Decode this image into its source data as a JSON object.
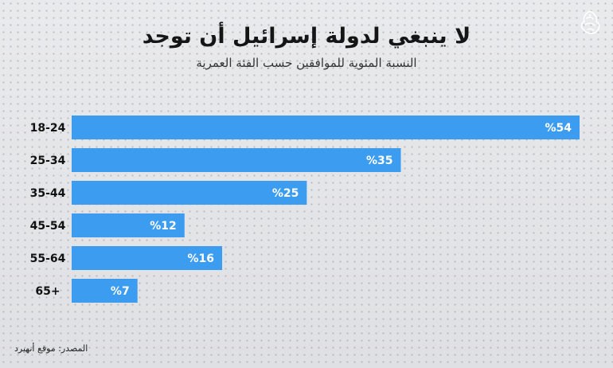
{
  "header": {
    "title": "لا ينبغي لدولة إسرائيل أن توجد",
    "subtitle": "النسبة المئوية للموافقين حسب الفئة العمرية"
  },
  "logo": {
    "icon": "al-jazeera-logo-icon",
    "color": "#ffffff"
  },
  "source": "المصدر: موقع أنهيرد",
  "chart_data": {
    "type": "bar",
    "orientation": "horizontal",
    "categories": [
      "18-24",
      "25-34",
      "35-44",
      "45-54",
      "55-64",
      "65+"
    ],
    "values": [
      54,
      35,
      25,
      12,
      16,
      7
    ],
    "data_labels": [
      "%54",
      "%35",
      "%25",
      "%12",
      "%16",
      "%7"
    ],
    "xlim": [
      0,
      54
    ],
    "bar_color": "#3b9cf0",
    "label_color": "#ffffff",
    "grid": false,
    "legend": "none"
  }
}
